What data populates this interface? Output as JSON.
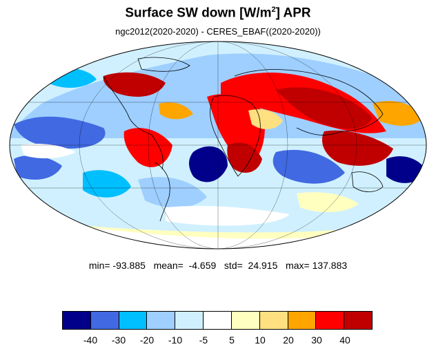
{
  "title": {
    "main": "Surface SW down [W/m",
    "sup": "2",
    "tail": "]  APR"
  },
  "subtitle": "ngc2012(2020-2020) - CERES_EBAF((2020-2020))",
  "stats": {
    "text": "min= -93.885   mean=  -4.659   std=  24.915   max= 137.883"
  },
  "colorbar": {
    "colors": [
      "#00008b",
      "#4169e1",
      "#00bfff",
      "#9ecfff",
      "#d0f0ff",
      "#ffffff",
      "#ffffc0",
      "#ffe080",
      "#ffa500",
      "#ff0000",
      "#c00000"
    ],
    "tick_labels": [
      "-40",
      "-30",
      "-20",
      "-10",
      "-5",
      "5",
      "10",
      "20",
      "30",
      "40"
    ]
  },
  "map": {
    "projection": "mollweide",
    "field": "surface shortwave downward flux difference",
    "ocean_color": "#ffffff",
    "grid_color": "#000000"
  }
}
